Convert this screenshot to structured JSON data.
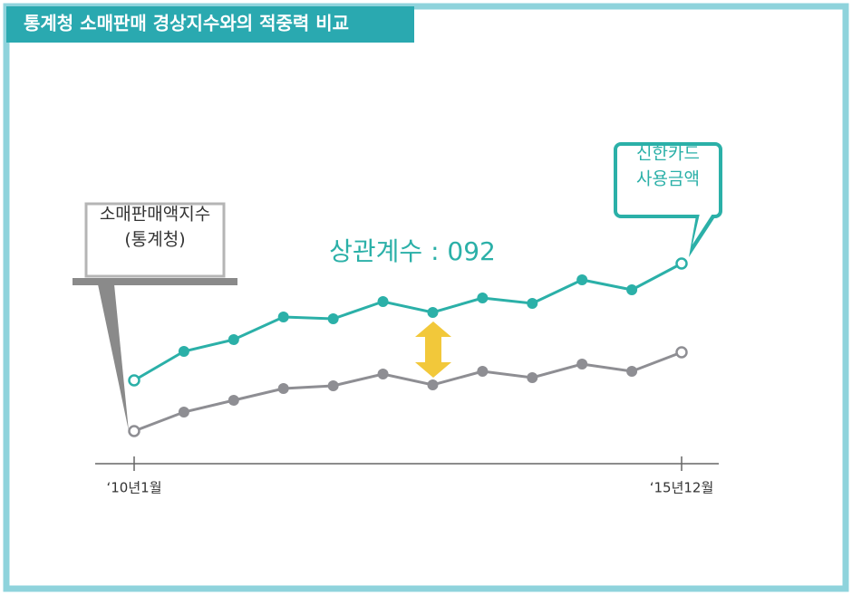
{
  "chart_data": {
    "type": "line",
    "title": "통계청 소매판매 경상지수와의 적중력 비교",
    "annotation": "상관계수 : 092",
    "categories": [
      "‘10년1월",
      null,
      null,
      null,
      null,
      null,
      null,
      null,
      null,
      null,
      null,
      "‘15년12월"
    ],
    "ylim": [
      0,
      100
    ],
    "series": [
      {
        "name_lines": [
          "신한카드",
          "사용금액"
        ],
        "color": "#2bb0a8",
        "values": [
          30,
          46,
          52.5,
          65,
          64,
          73.5,
          67.5,
          75.5,
          72.5,
          85.5,
          80,
          94.5
        ]
      },
      {
        "name_lines": [
          "소매판매액지수",
          "(통계청)"
        ],
        "color": "#8e8e93",
        "values": [
          2,
          12.5,
          19,
          25.5,
          27,
          33.5,
          27.5,
          35,
          31.5,
          39,
          35,
          45.5
        ]
      }
    ]
  }
}
